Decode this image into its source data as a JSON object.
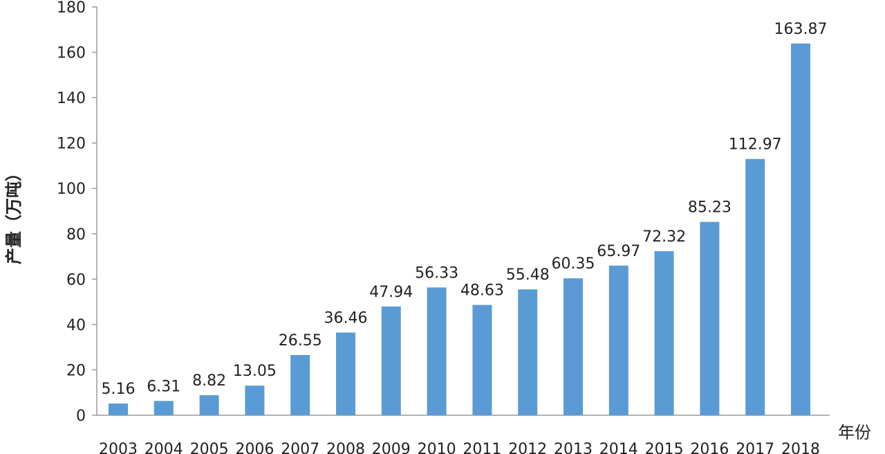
{
  "chart_data": {
    "type": "bar",
    "categories": [
      "2003",
      "2004",
      "2005",
      "2006",
      "2007",
      "2008",
      "2009",
      "2010",
      "2011",
      "2012",
      "2013",
      "2014",
      "2015",
      "2016",
      "2017",
      "2018"
    ],
    "values": [
      5.16,
      6.31,
      8.82,
      13.05,
      26.55,
      36.46,
      47.94,
      56.33,
      48.63,
      55.48,
      60.35,
      65.97,
      72.32,
      85.23,
      112.97,
      163.87
    ],
    "value_labels": [
      "5.16",
      "6.31",
      "8.82",
      "13.05",
      "26.55",
      "36.46",
      "47.94",
      "56.33",
      "48.63",
      "55.48",
      "60.35",
      "65.97",
      "72.32",
      "85.23",
      "112.97",
      "163.87"
    ],
    "title": "",
    "xlabel": "年份",
    "ylabel": "产量（万吨）",
    "ylim": [
      0,
      180
    ],
    "yticks": [
      0,
      20,
      40,
      60,
      80,
      100,
      120,
      140,
      160,
      180
    ],
    "ytick_labels": [
      "0",
      "20",
      "40",
      "60",
      "80",
      "100",
      "120",
      "140",
      "160",
      "180"
    ],
    "grid": false,
    "bar_color": "#5B9BD5"
  }
}
